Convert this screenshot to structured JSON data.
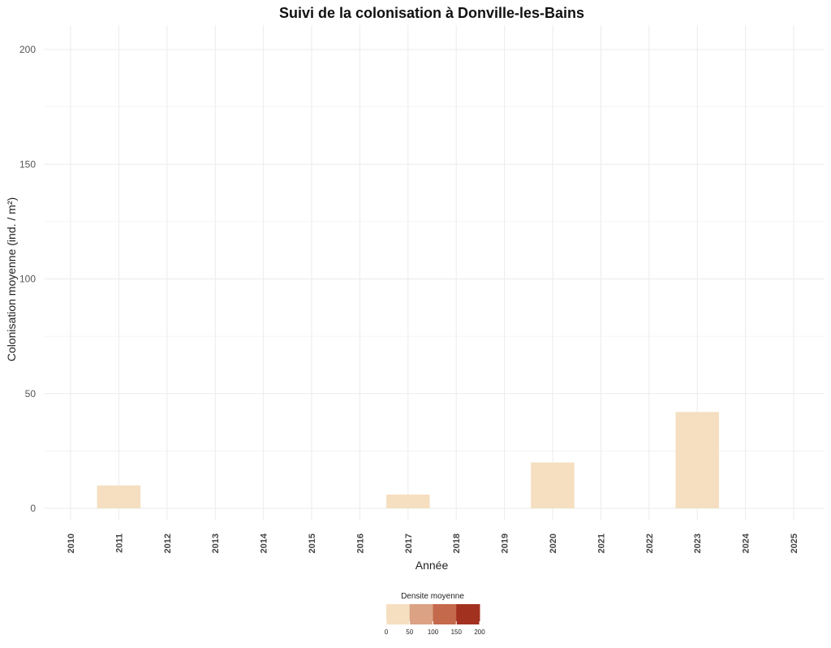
{
  "chart_data": {
    "type": "bar",
    "title": "Suivi de la colonisation à Donville-les-Bains",
    "xlabel": "Année",
    "ylabel": "Colonisation moyenne (ind. / m²)",
    "ylim": [
      0,
      210
    ],
    "yticks": [
      0,
      50,
      100,
      150,
      200
    ],
    "grid": true,
    "categories": [
      "2010",
      "2011",
      "2012",
      "2013",
      "2014",
      "2015",
      "2016",
      "2017",
      "2018",
      "2019",
      "2020",
      "2021",
      "2022",
      "2023",
      "2024",
      "2025"
    ],
    "values": [
      null,
      10,
      null,
      null,
      null,
      null,
      null,
      6,
      null,
      null,
      20,
      null,
      null,
      42,
      null,
      null
    ],
    "bar_color": "#f5dfc0",
    "legend": {
      "title": "Densite moyenne",
      "placement": "bottom",
      "ticks": [
        "0",
        "50",
        "100",
        "150",
        "200"
      ],
      "colors": [
        "#f5dfc0",
        "#dba284",
        "#c4694b",
        "#a3311f"
      ]
    }
  }
}
